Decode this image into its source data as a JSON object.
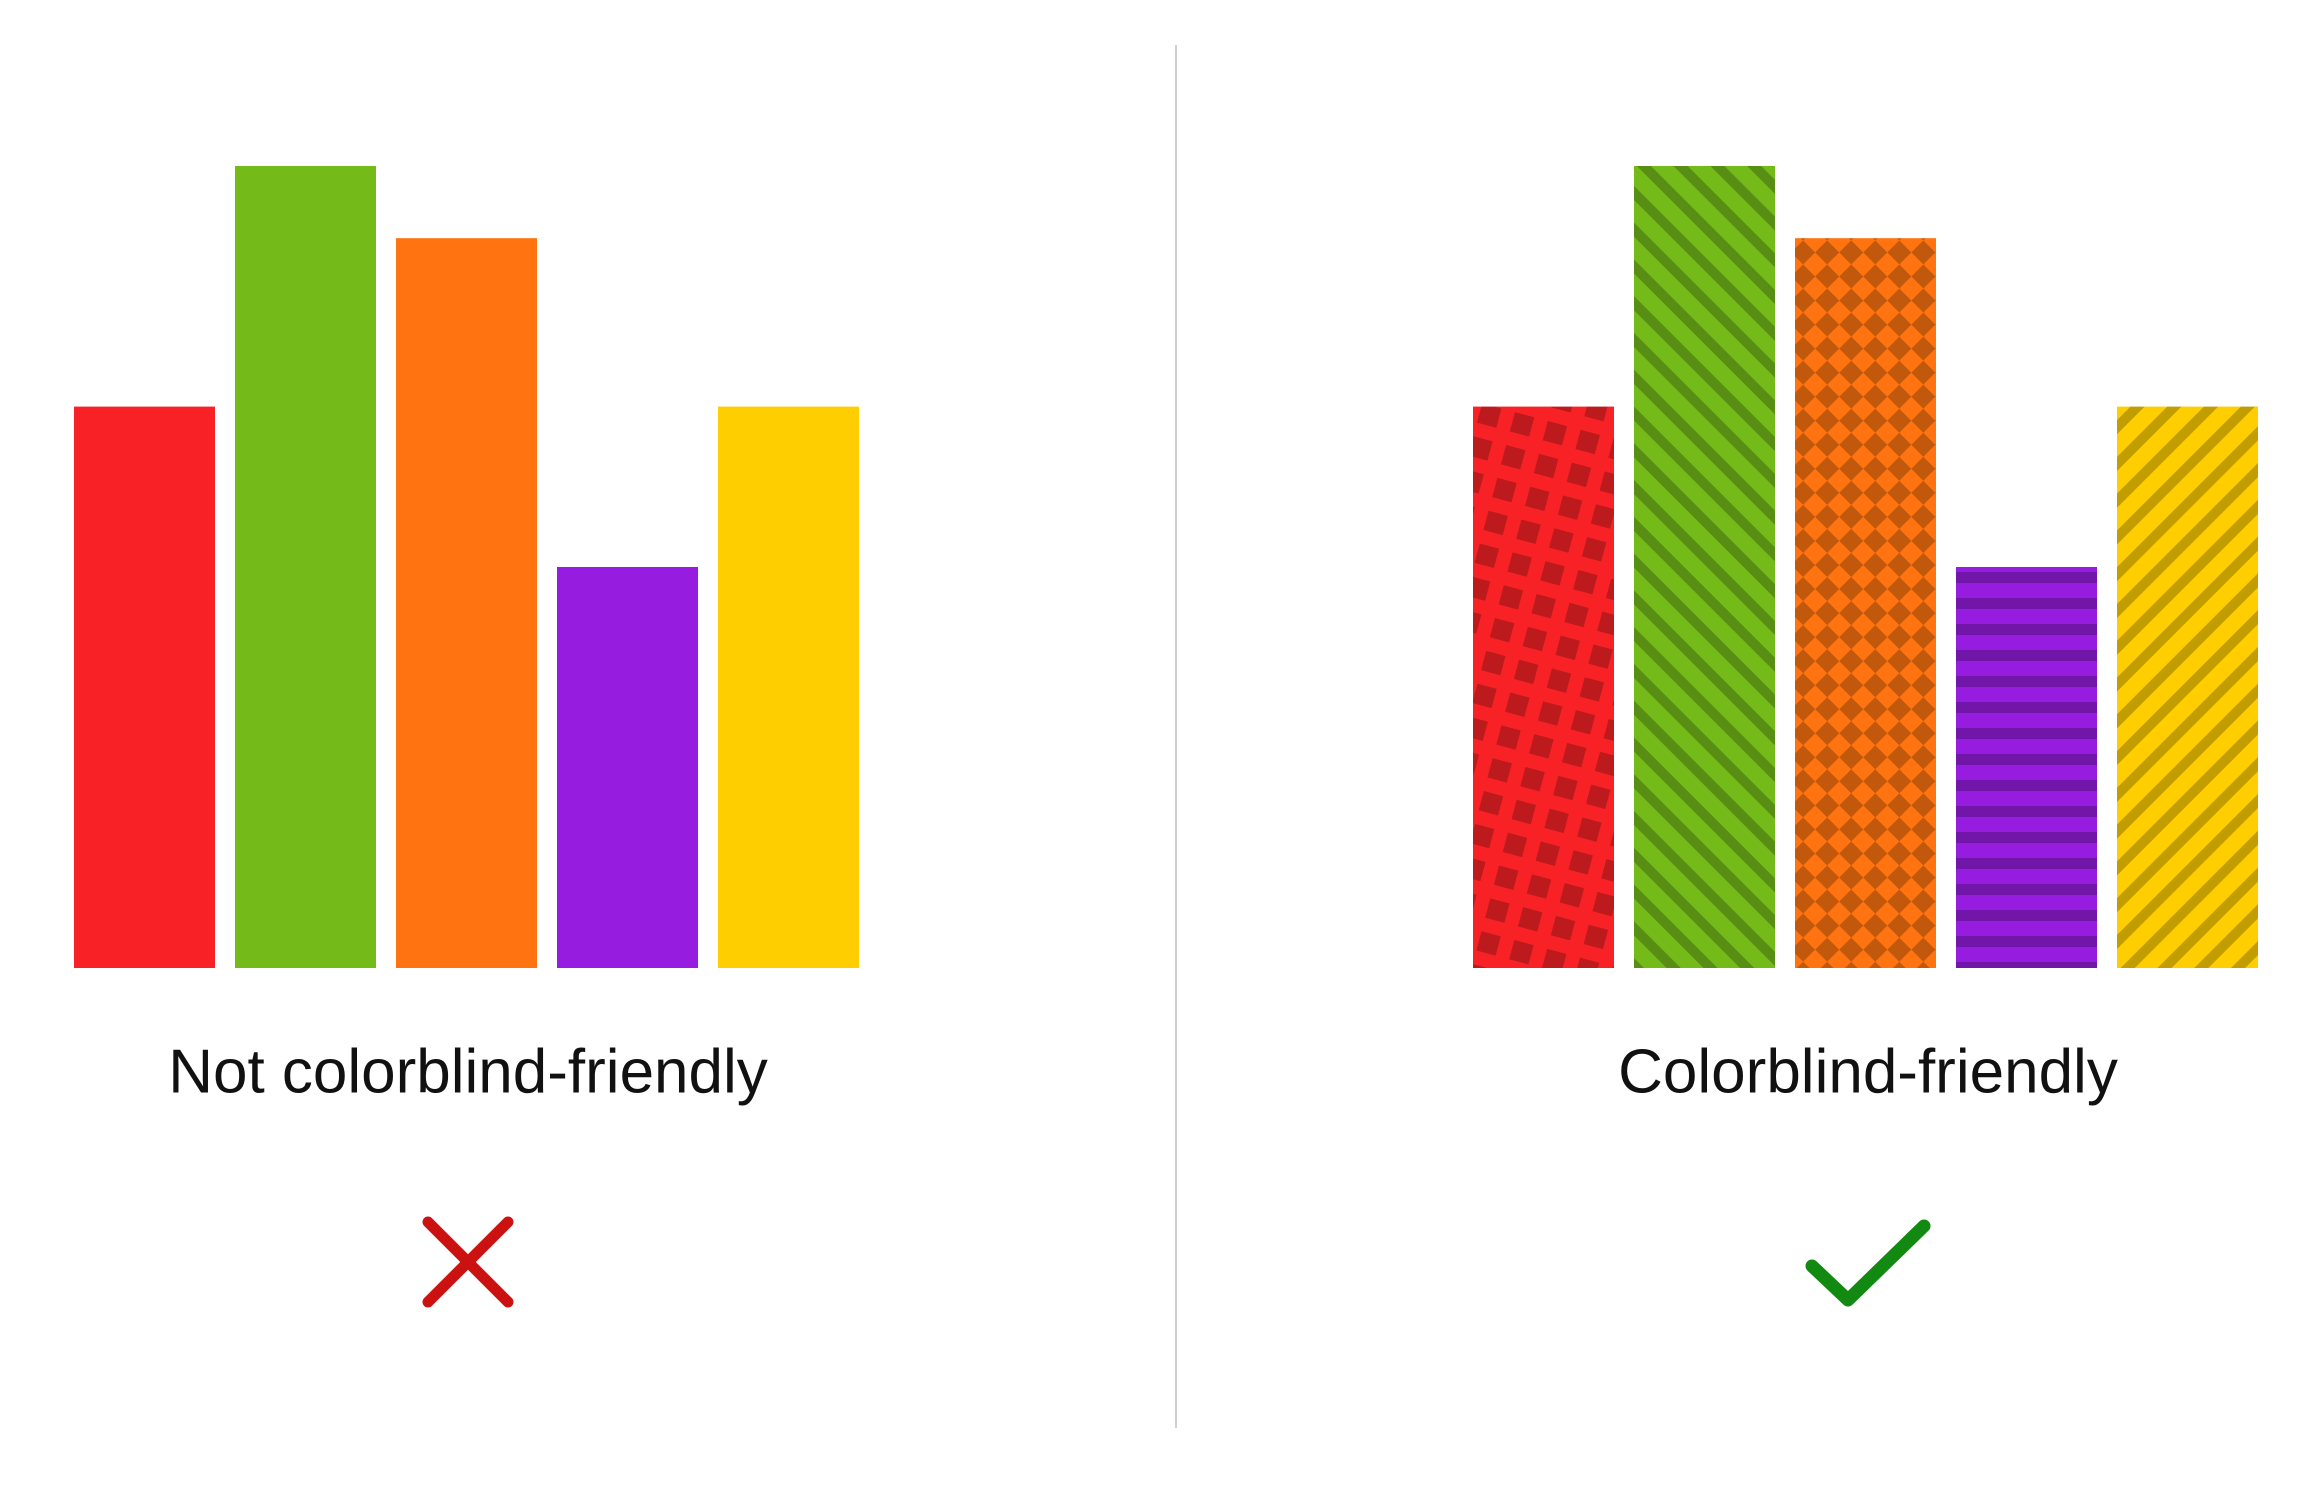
{
  "chart_data": [
    {
      "type": "bar",
      "title": "Not colorblind-friendly",
      "values": [
        70,
        100,
        91,
        50,
        70
      ],
      "colors": [
        "#f82226",
        "#74bb1a",
        "#ff7410",
        "#961de0",
        "#ffce00"
      ],
      "ylim": [
        0,
        100
      ]
    },
    {
      "type": "bar",
      "title": "Colorblind-friendly",
      "values": [
        70,
        100,
        91,
        50,
        70
      ],
      "colors": [
        "#f82226",
        "#74bb1a",
        "#ff7410",
        "#961de0",
        "#ffce00"
      ],
      "patterns": [
        "tilted-squares",
        "diagonal-down",
        "diamonds",
        "horizontal-stripes",
        "diagonal-up"
      ],
      "ylim": [
        0,
        100
      ]
    }
  ]
}
